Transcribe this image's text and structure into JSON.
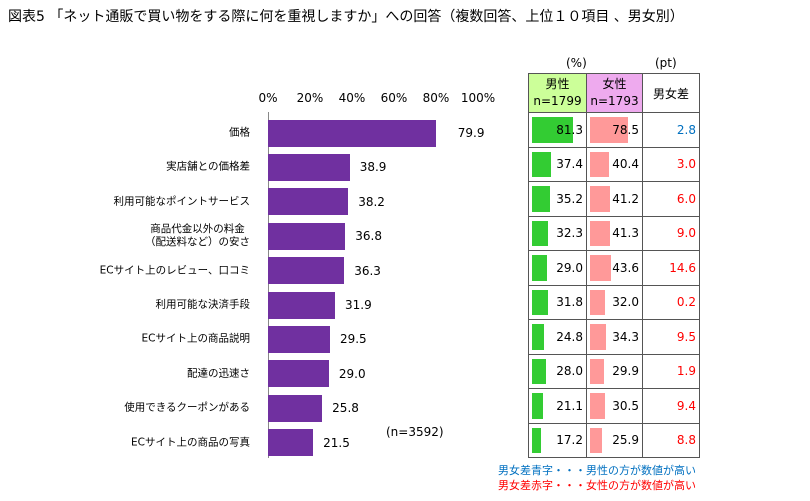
{
  "chart_data": {
    "type": "bar",
    "title": "図表5 「ネット通販で買い物をする際に何を重視しますか」への回答（複数回答、上位１０項目 、男女別）",
    "categories": [
      "価格",
      "実店舗との価格差",
      "利用可能なポイントサービス",
      "商品代金以外の料金\n（配送料など）の安さ",
      "ECサイト上のレビュー、口コミ",
      "利用可能な決済手段",
      "ECサイト上の商品説明",
      "配達の迅速さ",
      "使用できるクーポンがある",
      "ECサイト上の商品の写真"
    ],
    "values": [
      79.9,
      38.9,
      38.2,
      36.8,
      36.3,
      31.9,
      29.5,
      29.0,
      25.8,
      21.5
    ],
    "xlim": [
      0,
      100
    ],
    "xticks": [
      "0%",
      "20%",
      "40%",
      "60%",
      "80%",
      "100%"
    ],
    "n_label": "(n=3592)",
    "bar_color": "#7030a0",
    "table": {
      "unit_pct": "(%)",
      "unit_pt": "(pt)",
      "male_header": "男性",
      "male_n": "n=1799",
      "female_header": "女性",
      "female_n": "n=1793",
      "diff_header": "男女差",
      "male": [
        81.3,
        37.4,
        35.2,
        32.3,
        29.0,
        31.8,
        24.8,
        28.0,
        21.1,
        17.2
      ],
      "female": [
        78.5,
        40.4,
        41.2,
        41.3,
        43.6,
        32.0,
        34.3,
        29.9,
        30.5,
        25.9
      ],
      "diff": [
        "2.8",
        "3.0",
        "6.0",
        "9.0",
        "14.6",
        "0.2",
        "9.5",
        "1.9",
        "9.4",
        "8.8"
      ],
      "diff_color": [
        "blue",
        "red",
        "red",
        "red",
        "red",
        "red",
        "red",
        "red",
        "red",
        "red"
      ],
      "male_color": "#33cc33",
      "female_color": "#ff9999",
      "blue": "#0070c0",
      "red": "#ff0000"
    },
    "notes": [
      "男女差青字・・・男性の方が数値が高い",
      "男女差赤字・・・女性の方が数値が高い"
    ]
  }
}
